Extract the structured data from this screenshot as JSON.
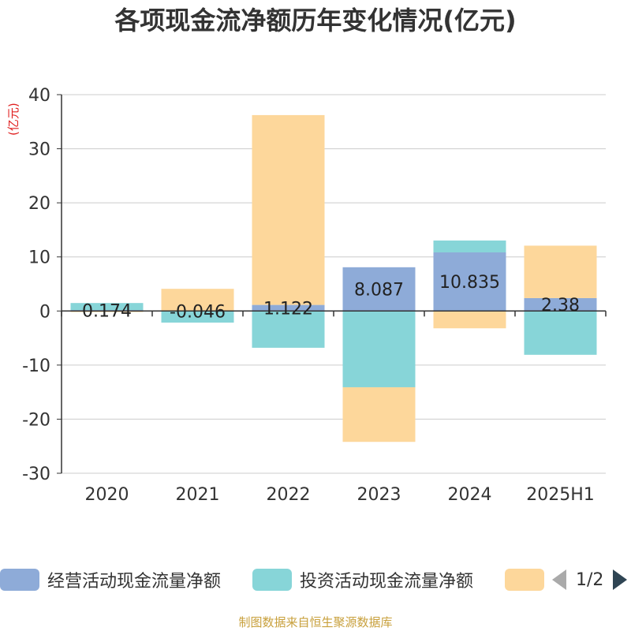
{
  "chart_data": {
    "type": "bar",
    "stacked": true,
    "title": "各项现金流净额历年变化情况(亿元)",
    "ylabel": "(亿元)",
    "categories": [
      "2020",
      "2021",
      "2022",
      "2023",
      "2024",
      "2025H1"
    ],
    "ylim": [
      -30,
      40
    ],
    "yticks": [
      -30,
      -20,
      -10,
      0,
      10,
      20,
      30,
      40
    ],
    "grid": true,
    "legend_position": "bottom",
    "series": [
      {
        "name": "经营活动现金流量净额",
        "color": "#8eabd8",
        "values": [
          0.174,
          -0.046,
          1.122,
          8.087,
          10.835,
          2.38
        ],
        "labels": [
          "0.174",
          "-0.046",
          "1.122",
          "8.087",
          "10.835",
          "2.38"
        ]
      },
      {
        "name": "投资活动现金流量净额",
        "color": "#87d5d8",
        "values": [
          1.3,
          -2.1,
          -6.8,
          -14.1,
          2.2,
          -8.1
        ]
      },
      {
        "name": "",
        "color": "#fdd79b",
        "values": [
          -0.2,
          4.1,
          35.1,
          -10.1,
          -3.2,
          9.7
        ]
      }
    ]
  },
  "legend": {
    "page_indicator": "1/2"
  },
  "footer": "制图数据来自恒生聚源数据库"
}
